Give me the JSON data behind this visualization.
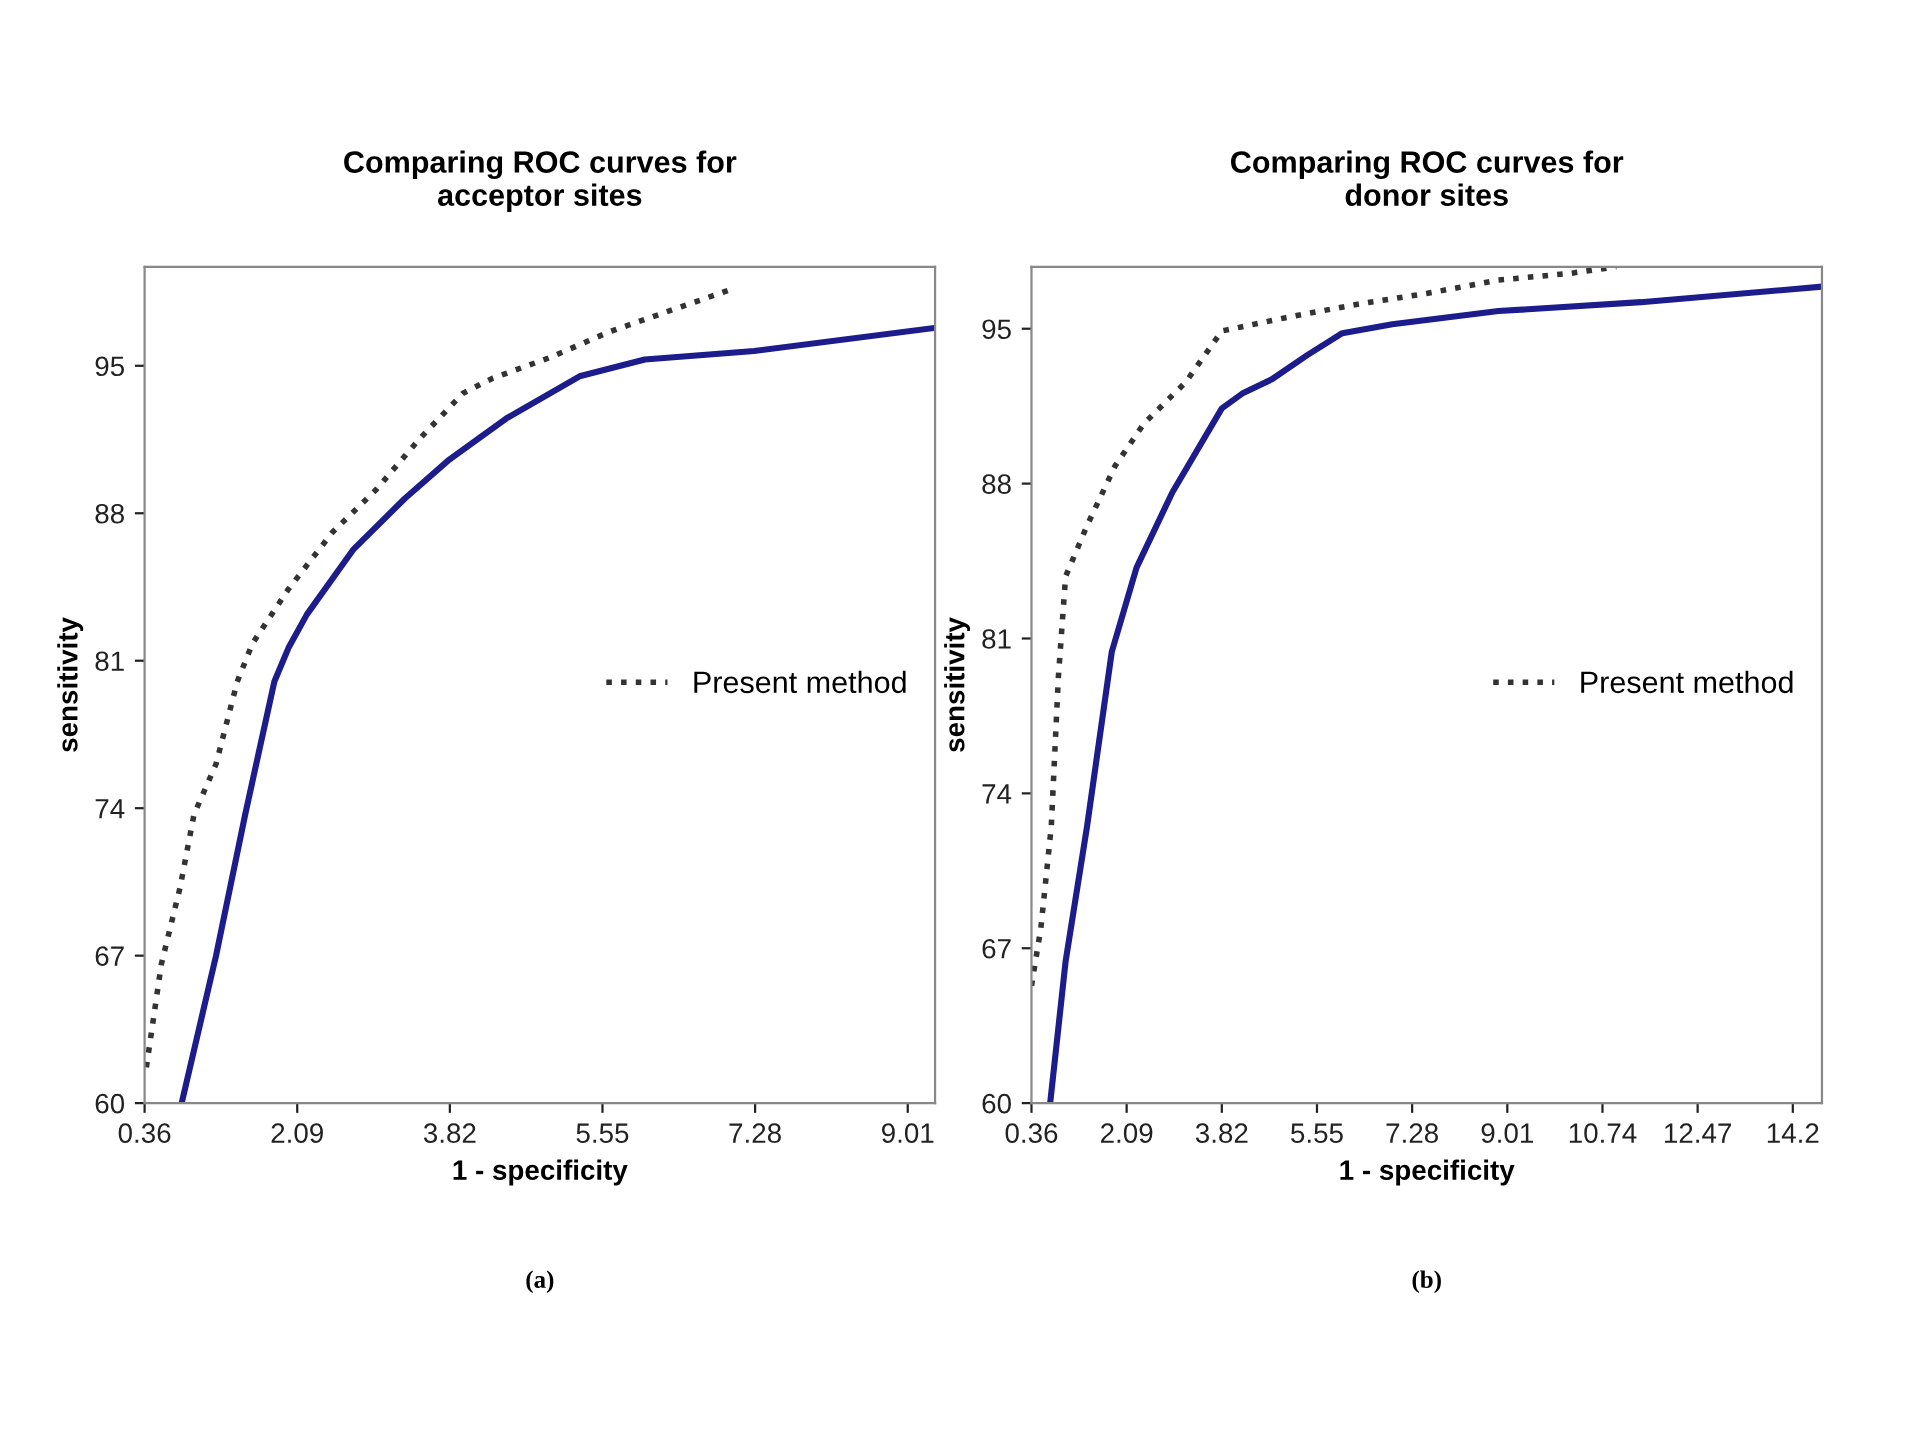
{
  "chart_data": [
    {
      "type": "line",
      "title": "Comparing ROC curves for\nacceptor sites",
      "xlabel": "1 - specificity",
      "ylabel": "sensitivity",
      "annotations": [
        "(a)"
      ],
      "xlim": [
        0.36,
        9.32
      ],
      "xticks": [
        0.36,
        2.09,
        3.82,
        5.55,
        7.28,
        9.01
      ],
      "ylim": [
        60,
        99.7
      ],
      "yticks": [
        60,
        67,
        74,
        81,
        88,
        95
      ],
      "grid": false,
      "legend": "right",
      "series": [
        {
          "color": "#1c1c8c",
          "line_style": "solid",
          "x": [
            0.78,
            1.17,
            1.5,
            1.83,
            1.99,
            2.2,
            2.73,
            3.31,
            3.8,
            4.46,
            5.29,
            6.03,
            7.27,
            9.32
          ],
          "values": [
            60,
            67.0,
            73.7,
            80.0,
            81.6,
            83.2,
            86.3,
            88.7,
            90.5,
            92.5,
            94.5,
            95.3,
            95.7,
            96.8
          ]
        },
        {
          "name": "Present method",
          "color": "#333333",
          "line_style": "dotted",
          "x": [
            0.38,
            0.55,
            0.76,
            0.92,
            1.17,
            1.41,
            1.58,
            1.99,
            2.49,
            2.98,
            3.47,
            3.97,
            4.3,
            4.96,
            5.62,
            6.44,
            7.06
          ],
          "values": [
            61.7,
            66.6,
            70.2,
            73.7,
            76.1,
            80.0,
            81.8,
            84.4,
            87.1,
            89.1,
            91.5,
            93.7,
            94.4,
            95.4,
            96.6,
            97.8,
            98.7
          ]
        }
      ]
    },
    {
      "type": "line",
      "title": "Comparing ROC curves for\ndonor sites",
      "xlabel": "1 - specificity",
      "ylabel": "sensitivity",
      "annotations": [
        "(b)"
      ],
      "xlim": [
        0.36,
        14.73
      ],
      "xticks": [
        0.36,
        2.09,
        3.82,
        5.55,
        7.28,
        9.01,
        10.74,
        12.47,
        14.2
      ],
      "ylim": [
        60,
        97.8
      ],
      "yticks": [
        60,
        67,
        74,
        81,
        88,
        95
      ],
      "grid": false,
      "legend": "right",
      "series": [
        {
          "color": "#1c1c8c",
          "line_style": "solid",
          "x": [
            0.7,
            0.98,
            1.37,
            1.82,
            2.27,
            2.92,
            3.82,
            4.21,
            4.72,
            5.37,
            6.01,
            6.92,
            8.85,
            11.44,
            14.73
          ],
          "values": [
            60,
            66.4,
            72.5,
            80.4,
            84.2,
            87.6,
            91.4,
            92.1,
            92.7,
            93.8,
            94.8,
            95.2,
            95.8,
            96.2,
            96.9
          ]
        },
        {
          "name": "Present method",
          "color": "#333333",
          "line_style": "dotted",
          "x": [
            0.36,
            0.53,
            0.72,
            0.85,
            0.98,
            1.37,
            1.88,
            2.4,
            3.17,
            3.82,
            4.21,
            4.98,
            6.27,
            7.56,
            8.85,
            10.15,
            10.99
          ],
          "values": [
            65.3,
            67.9,
            72.5,
            79.3,
            83.8,
            86.1,
            88.8,
            90.7,
            92.6,
            94.9,
            95.1,
            95.5,
            96.1,
            96.6,
            97.2,
            97.5,
            97.8
          ]
        }
      ]
    }
  ]
}
